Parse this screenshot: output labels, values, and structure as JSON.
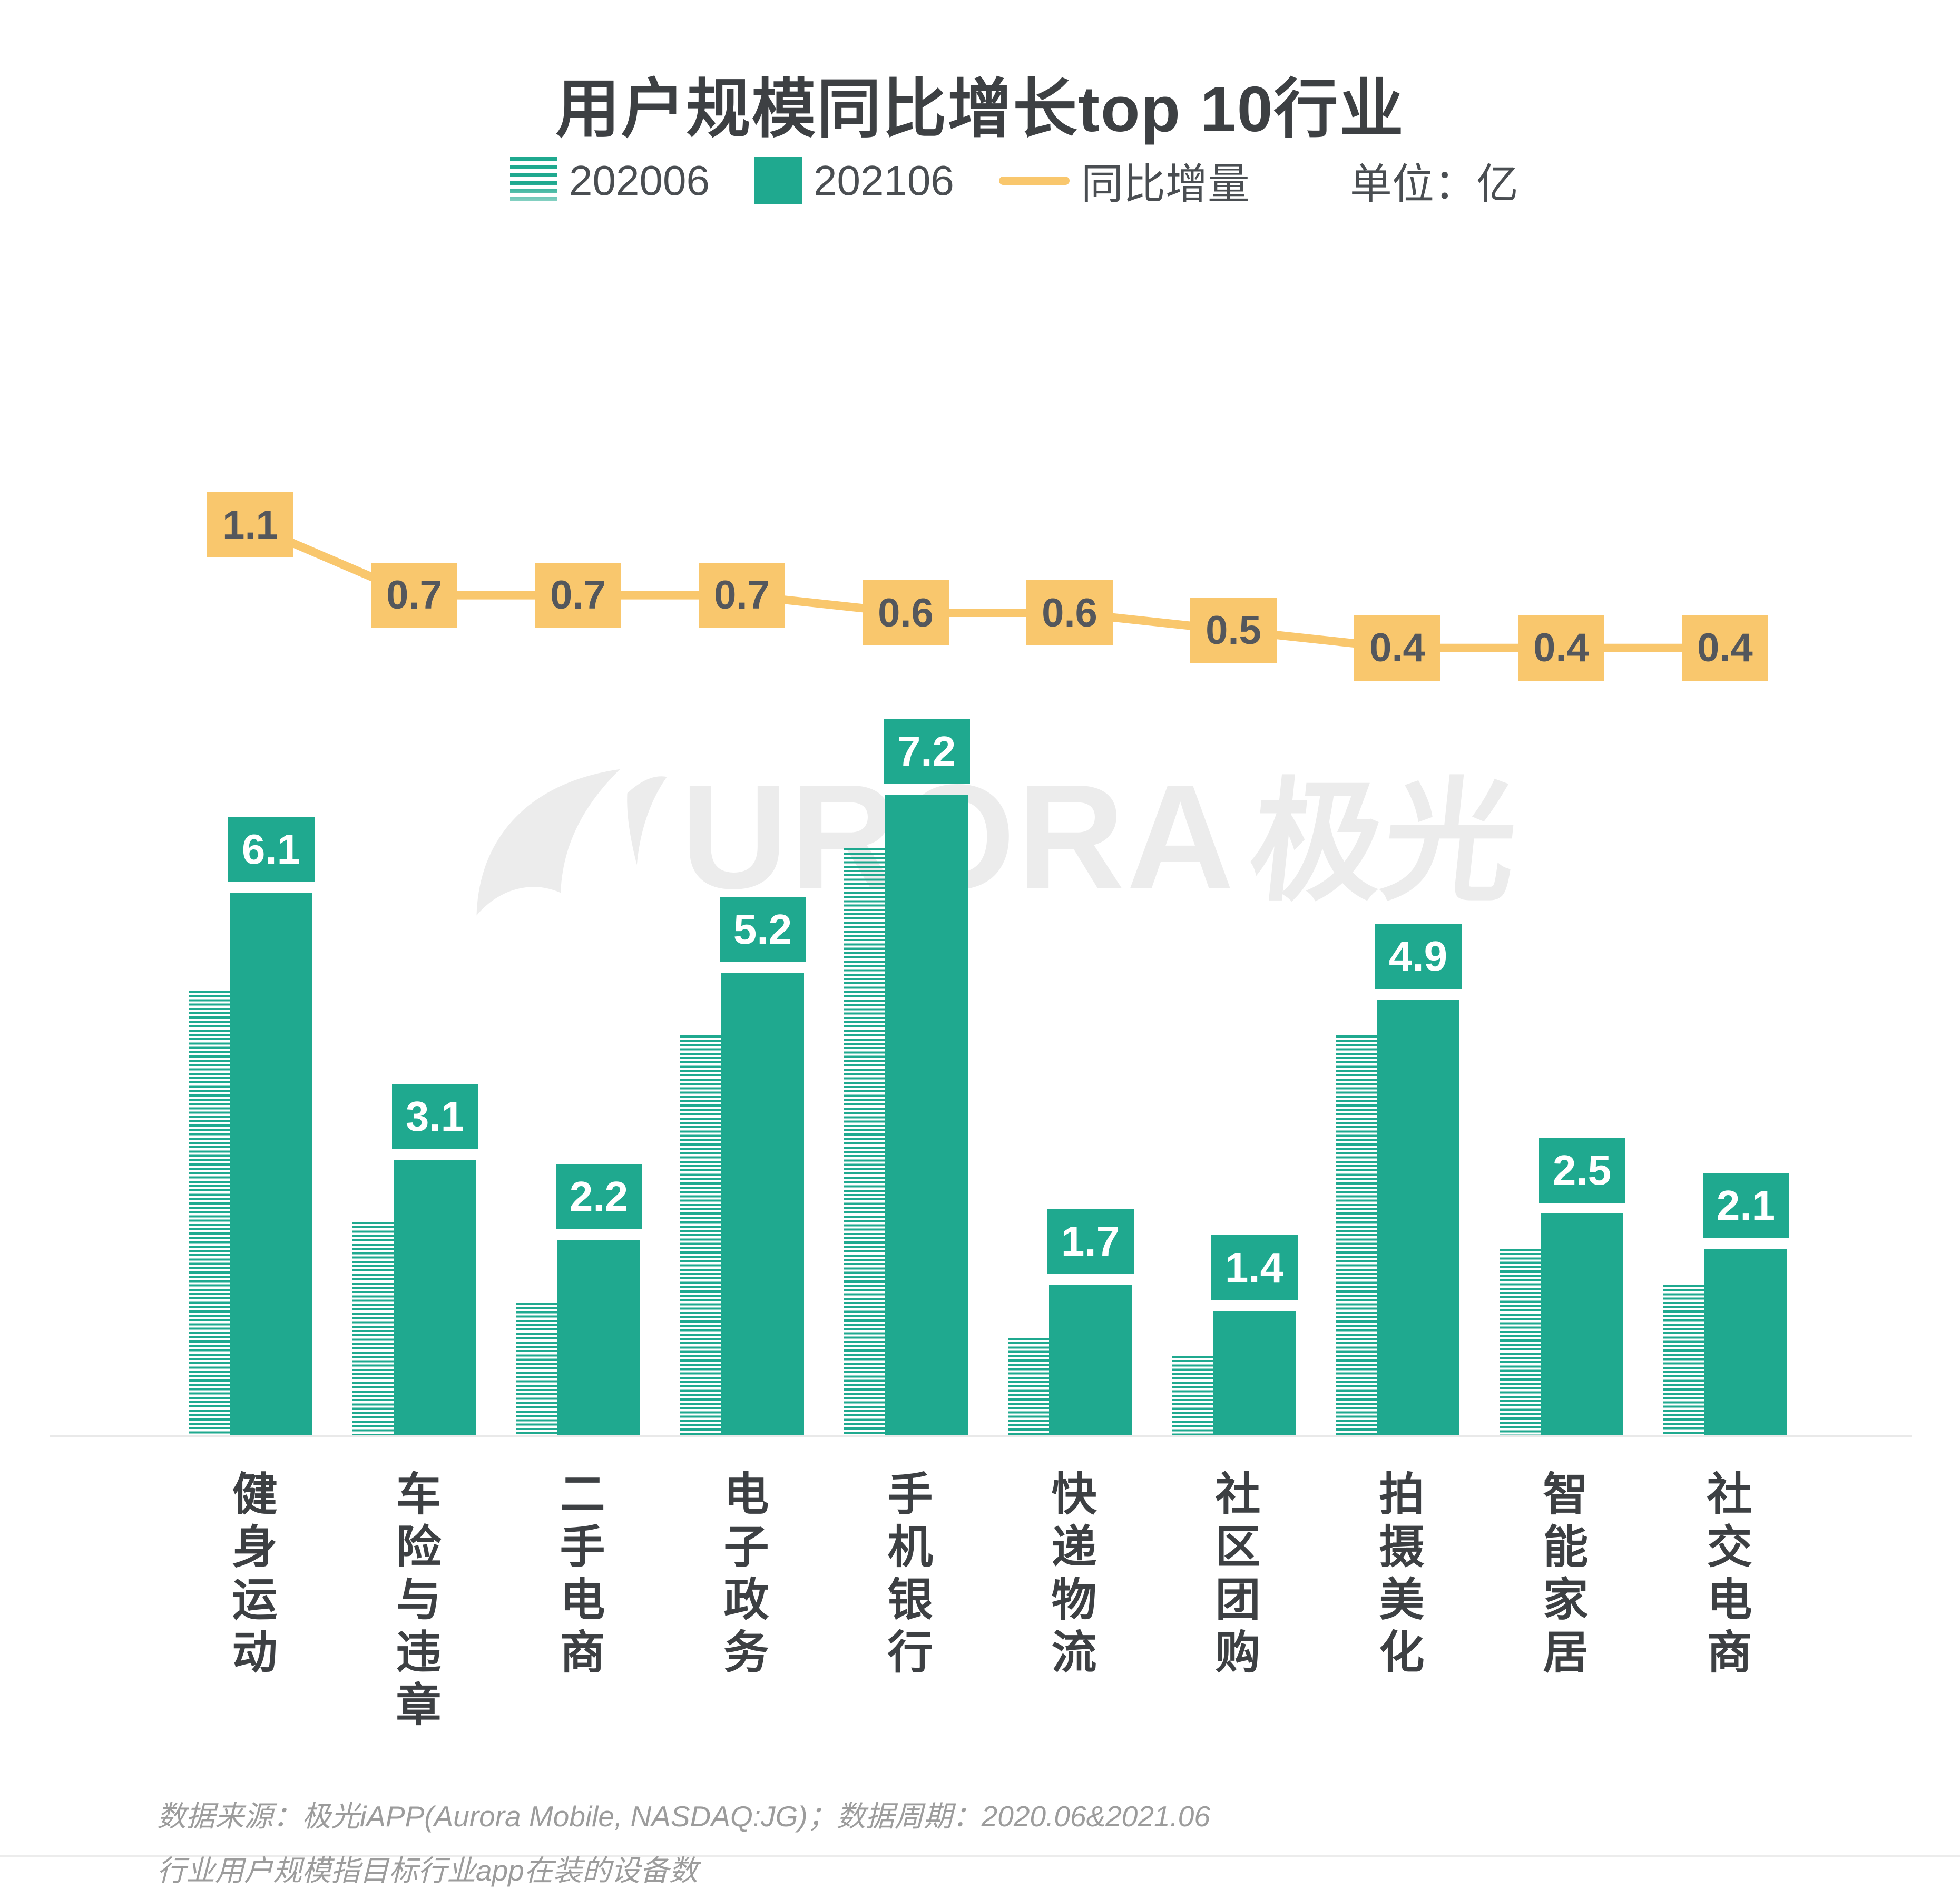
{
  "title": "用户规模同比增长top 10行业",
  "legend": {
    "series1": "202006",
    "series2": "202106",
    "line": "同比增量",
    "unit": "单位：亿"
  },
  "watermark": {
    "latin": "URORA",
    "cjk": "极光"
  },
  "footer": {
    "line1": "数据来源：极光iAPP(Aurora Mobile, NASDAQ:JG)；数据周期：2020.06&2021.06",
    "line2": "行业用户规模指目标行业app在装的设备数"
  },
  "colors": {
    "bar_green": "#1fa98f",
    "line_yellow": "#f9c76d",
    "dark_text": "#3d4043",
    "box_value_text": "#54575c",
    "footer_gray": "#9c9c9c",
    "watermark_gray": "#ececec",
    "axis_gray": "#e9e9e9"
  },
  "chart_data": {
    "type": "bar",
    "title": "用户规模同比增长top 10行业",
    "unit": "亿",
    "categories": [
      "健身运动",
      "车险与违章",
      "二手电商",
      "电子政务",
      "手机银行",
      "快递物流",
      "社区团购",
      "拍摄美化",
      "智能家居",
      "社交电商"
    ],
    "series": [
      {
        "name": "202006",
        "style": "striped",
        "values": [
          5.0,
          2.4,
          1.5,
          4.5,
          6.6,
          1.1,
          0.9,
          4.5,
          2.1,
          1.7
        ]
      },
      {
        "name": "202106",
        "style": "solid",
        "values": [
          6.1,
          3.1,
          2.2,
          5.2,
          7.2,
          1.7,
          1.4,
          4.9,
          2.5,
          2.1
        ]
      }
    ],
    "line_series": {
      "name": "同比增量",
      "values": [
        1.1,
        0.7,
        0.7,
        0.7,
        0.6,
        0.6,
        0.5,
        0.4,
        0.4,
        0.4
      ]
    },
    "value_labels_shown": [
      "202106",
      "同比增量"
    ],
    "legend_position": "top",
    "grid": false,
    "ylim": [
      0,
      7.2
    ]
  }
}
